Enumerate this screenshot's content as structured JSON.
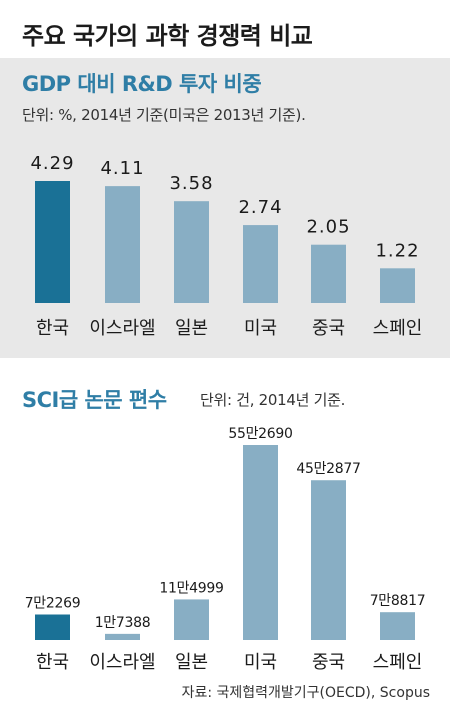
{
  "title": "주요 국가의 과학 경쟁력 비교",
  "source": "자료: 국제협력개발기구(OECD), Scopus",
  "colors": {
    "highlight": "#1a7196",
    "bar": "#88aec4",
    "panel_bg": "#e8e8e8",
    "subtitle": "#2f7ea6"
  },
  "chart_data": [
    {
      "type": "bar",
      "title": "GDP 대비 R&D 투자 비중",
      "unit_note": "단위: %, 2014년 기준(미국은 2013년 기준).",
      "categories": [
        "한국",
        "이스라엘",
        "일본",
        "미국",
        "중국",
        "스페인"
      ],
      "values": [
        4.29,
        4.11,
        3.58,
        2.74,
        2.05,
        1.22
      ],
      "value_labels": [
        "4.29",
        "4.11",
        "3.58",
        "2.74",
        "2.05",
        "1.22"
      ],
      "highlight_index": 0,
      "ylim": [
        0,
        4.29
      ],
      "grid": false,
      "legend": "none"
    },
    {
      "type": "bar",
      "title": "SCI급 논문 편수",
      "unit_note": "단위: 건, 2014년 기준.",
      "categories": [
        "한국",
        "이스라엘",
        "일본",
        "미국",
        "중국",
        "스페인"
      ],
      "values": [
        72269,
        17388,
        114999,
        552690,
        452877,
        78817
      ],
      "value_labels": [
        "7만2269",
        "1만7388",
        "11만4999",
        "55만2690",
        "45만2877",
        "7만8817"
      ],
      "highlight_index": 0,
      "ylim": [
        0,
        552690
      ],
      "grid": false,
      "legend": "none"
    }
  ]
}
